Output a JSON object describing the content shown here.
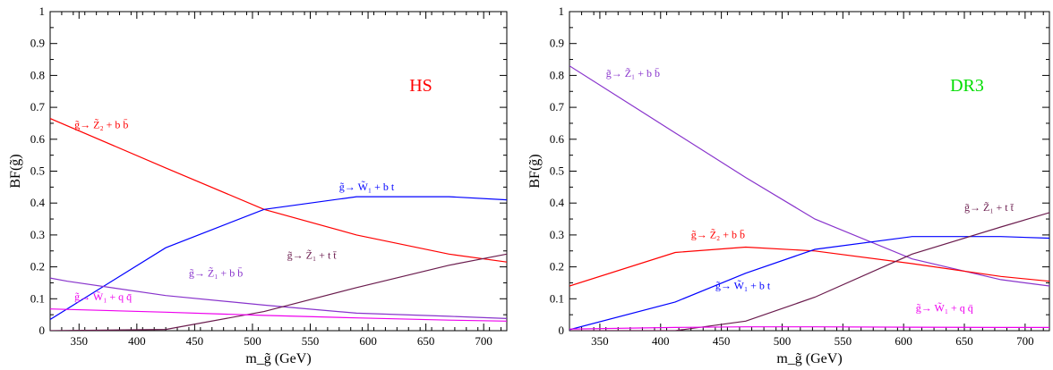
{
  "figure": {
    "panels": [
      {
        "title": "HS",
        "title_color": "#ff0000"
      },
      {
        "title": "DR3",
        "title_color": "#00dd00"
      }
    ]
  },
  "chart_data": [
    {
      "type": "line",
      "title": "HS",
      "xlabel": "m_g̃ (GeV)",
      "ylabel": "BF(g̃)",
      "xlim": [
        325,
        720
      ],
      "ylim": [
        0,
        1
      ],
      "xticks": [
        350,
        400,
        450,
        500,
        550,
        600,
        650,
        700
      ],
      "yticks": [
        0,
        0.1,
        0.2,
        0.3,
        0.4,
        0.5,
        0.6,
        0.7,
        0.8,
        0.9,
        1
      ],
      "grid": false,
      "series": [
        {
          "name": "g̃→ Z̃₂ + b b̄",
          "color": "#ff0000",
          "x": [
            325,
            425,
            510,
            590,
            670,
            720
          ],
          "y": [
            0.665,
            0.51,
            0.38,
            0.3,
            0.24,
            0.215
          ],
          "label_pos": [
            346,
            0.635
          ]
        },
        {
          "name": "g̃→ W̃₁ + b t",
          "color": "#0000ff",
          "x": [
            325,
            425,
            510,
            590,
            670,
            720
          ],
          "y": [
            0.035,
            0.26,
            0.38,
            0.42,
            0.42,
            0.41
          ],
          "label_pos": [
            575,
            0.44
          ]
        },
        {
          "name": "g̃→ Z̃₁ + b b̄",
          "color": "#8833cc",
          "x": [
            325,
            340,
            425,
            510,
            590,
            670,
            720
          ],
          "y": [
            0.165,
            0.155,
            0.11,
            0.08,
            0.055,
            0.045,
            0.038
          ],
          "label_pos": [
            445,
            0.17
          ]
        },
        {
          "name": "g̃→ Z̃₁ + t t̄",
          "color": "#6a1b4d",
          "x": [
            325,
            425,
            510,
            590,
            670,
            720
          ],
          "y": [
            0,
            0.004,
            0.06,
            0.135,
            0.205,
            0.24
          ],
          "label_pos": [
            530,
            0.225
          ]
        },
        {
          "name": "g̃→ W̃₁ + q q̄",
          "color": "#ee00ee",
          "x": [
            325,
            425,
            510,
            590,
            670,
            720
          ],
          "y": [
            0.068,
            0.058,
            0.048,
            0.04,
            0.033,
            0.03
          ],
          "label_pos": [
            346,
            0.095
          ]
        }
      ]
    },
    {
      "type": "line",
      "title": "DR3",
      "xlabel": "m_g̃ (GeV)",
      "ylabel": "BF(g̃)",
      "xlim": [
        325,
        720
      ],
      "ylim": [
        0,
        1
      ],
      "xticks": [
        350,
        400,
        450,
        500,
        550,
        600,
        650,
        700
      ],
      "yticks": [
        0,
        0.1,
        0.2,
        0.3,
        0.4,
        0.5,
        0.6,
        0.7,
        0.8,
        0.9,
        1
      ],
      "grid": false,
      "series": [
        {
          "name": "g̃→ Z̃₁ + b b̄",
          "color": "#8833cc",
          "x": [
            325,
            412,
            470,
            527,
            607,
            680,
            720
          ],
          "y": [
            0.83,
            0.62,
            0.48,
            0.35,
            0.225,
            0.16,
            0.14
          ],
          "label_pos": [
            355,
            0.795
          ]
        },
        {
          "name": "g̃→ Z̃₂ + b b̄",
          "color": "#ff0000",
          "x": [
            325,
            412,
            470,
            527,
            607,
            680,
            720
          ],
          "y": [
            0.14,
            0.245,
            0.262,
            0.25,
            0.21,
            0.17,
            0.155
          ],
          "label_pos": [
            425,
            0.29
          ]
        },
        {
          "name": "g̃→ W̃₁ + b t",
          "color": "#0000ff",
          "x": [
            325,
            412,
            470,
            527,
            607,
            680,
            720
          ],
          "y": [
            0.003,
            0.09,
            0.18,
            0.255,
            0.295,
            0.295,
            0.29
          ],
          "label_pos": [
            445,
            0.13
          ]
        },
        {
          "name": "g̃→ Z̃₁ + t t̄",
          "color": "#6a1b4d",
          "x": [
            325,
            412,
            470,
            527,
            607,
            680,
            720
          ],
          "y": [
            0,
            0,
            0.03,
            0.105,
            0.24,
            0.325,
            0.37
          ],
          "label_pos": [
            650,
            0.375
          ]
        },
        {
          "name": "g̃→ W̃₁ + q q̄",
          "color": "#ee00ee",
          "x": [
            325,
            412,
            470,
            527,
            607,
            680,
            720
          ],
          "y": [
            0.005,
            0.01,
            0.012,
            0.012,
            0.011,
            0.01,
            0.01
          ],
          "label_pos": [
            610,
            0.06
          ]
        }
      ]
    }
  ]
}
